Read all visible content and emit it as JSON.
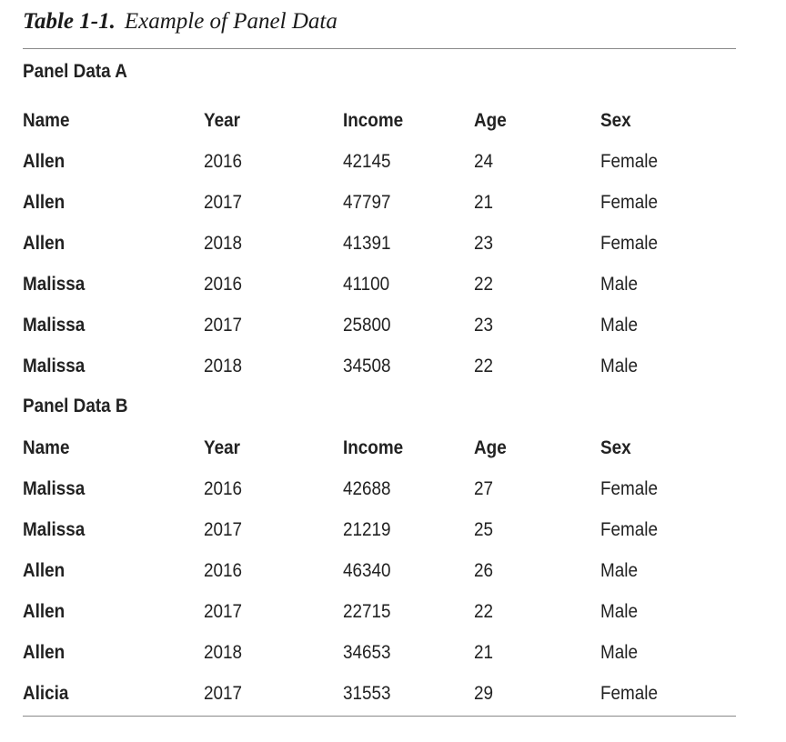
{
  "caption": {
    "label": "Table 1-1.",
    "title": "Example of Panel Data"
  },
  "columns": [
    "Name",
    "Year",
    "Income",
    "Age",
    "Sex"
  ],
  "panels": [
    {
      "title": "Panel Data A",
      "rows": [
        {
          "name": "Allen",
          "year": "2016",
          "income": "42145",
          "age": "24",
          "sex": "Female"
        },
        {
          "name": "Allen",
          "year": "2017",
          "income": "47797",
          "age": "21",
          "sex": "Female"
        },
        {
          "name": "Allen",
          "year": "2018",
          "income": "41391",
          "age": "23",
          "sex": "Female"
        },
        {
          "name": "Malissa",
          "year": "2016",
          "income": "41100",
          "age": "22",
          "sex": "Male"
        },
        {
          "name": "Malissa",
          "year": "2017",
          "income": "25800",
          "age": "23",
          "sex": "Male"
        },
        {
          "name": "Malissa",
          "year": "2018",
          "income": "34508",
          "age": "22",
          "sex": "Male"
        }
      ]
    },
    {
      "title": "Panel Data B",
      "rows": [
        {
          "name": "Malissa",
          "year": "2016",
          "income": "42688",
          "age": "27",
          "sex": "Female"
        },
        {
          "name": "Malissa",
          "year": "2017",
          "income": "21219",
          "age": "25",
          "sex": "Female"
        },
        {
          "name": "Allen",
          "year": "2016",
          "income": "46340",
          "age": "26",
          "sex": "Male"
        },
        {
          "name": "Allen",
          "year": "2017",
          "income": "22715",
          "age": "22",
          "sex": "Male"
        },
        {
          "name": "Allen",
          "year": "2018",
          "income": "34653",
          "age": "21",
          "sex": "Male"
        },
        {
          "name": "Alicia",
          "year": "2017",
          "income": "31553",
          "age": "29",
          "sex": "Female"
        }
      ]
    }
  ]
}
